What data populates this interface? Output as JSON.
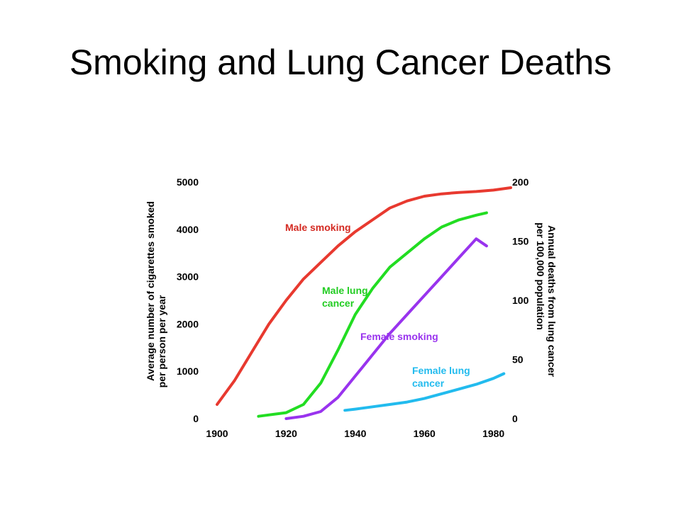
{
  "slide": {
    "title": "Smoking and Lung Cancer Deaths"
  },
  "chart_data": {
    "type": "line",
    "title": "",
    "xlabel": "",
    "x_ticks": [
      1900,
      1920,
      1940,
      1960,
      1980
    ],
    "xlim": [
      1900,
      1985
    ],
    "y_left": {
      "label_line1": "Average number of cigarettes smoked",
      "label_line2": "per person per year",
      "ticks": [
        0,
        1000,
        2000,
        3000,
        4000,
        5000
      ],
      "ylim": [
        0,
        5000
      ]
    },
    "y_right": {
      "label_line1": "Annual deaths from lung cancer",
      "label_line2": "per 100,000 population",
      "ticks": [
        0,
        50,
        100,
        150,
        200
      ],
      "ylim": [
        0,
        200
      ]
    },
    "series": [
      {
        "name": "Male smoking",
        "axis": "left",
        "color": "#e8392f",
        "label_line1": "Male smoking",
        "label_line2": "",
        "points": [
          [
            1900,
            300
          ],
          [
            1905,
            800
          ],
          [
            1910,
            1400
          ],
          [
            1915,
            2000
          ],
          [
            1920,
            2500
          ],
          [
            1925,
            2950
          ],
          [
            1930,
            3300
          ],
          [
            1935,
            3650
          ],
          [
            1940,
            3950
          ],
          [
            1945,
            4200
          ],
          [
            1950,
            4450
          ],
          [
            1955,
            4600
          ],
          [
            1960,
            4700
          ],
          [
            1965,
            4750
          ],
          [
            1970,
            4780
          ],
          [
            1975,
            4800
          ],
          [
            1980,
            4830
          ],
          [
            1985,
            4880
          ]
        ]
      },
      {
        "name": "Male lung cancer",
        "axis": "right",
        "color": "#22dd22",
        "label_line1": "Male lung",
        "label_line2": "cancer",
        "points": [
          [
            1912,
            2
          ],
          [
            1920,
            5
          ],
          [
            1925,
            12
          ],
          [
            1930,
            30
          ],
          [
            1935,
            58
          ],
          [
            1940,
            88
          ],
          [
            1945,
            110
          ],
          [
            1950,
            128
          ],
          [
            1955,
            140
          ],
          [
            1960,
            152
          ],
          [
            1965,
            162
          ],
          [
            1970,
            168
          ],
          [
            1975,
            172
          ],
          [
            1978,
            174
          ]
        ]
      },
      {
        "name": "Female smoking",
        "axis": "left",
        "color": "#9933ee",
        "label_line1": "Female smoking",
        "label_line2": "",
        "points": [
          [
            1920,
            0
          ],
          [
            1925,
            50
          ],
          [
            1930,
            150
          ],
          [
            1935,
            450
          ],
          [
            1940,
            900
          ],
          [
            1945,
            1350
          ],
          [
            1950,
            1800
          ],
          [
            1955,
            2200
          ],
          [
            1960,
            2600
          ],
          [
            1965,
            3000
          ],
          [
            1970,
            3400
          ],
          [
            1975,
            3800
          ],
          [
            1978,
            3650
          ]
        ]
      },
      {
        "name": "Female lung cancer",
        "axis": "right",
        "color": "#22bbee",
        "label_line1": "Female lung",
        "label_line2": "cancer",
        "points": [
          [
            1937,
            7
          ],
          [
            1940,
            8
          ],
          [
            1945,
            10
          ],
          [
            1950,
            12
          ],
          [
            1955,
            14
          ],
          [
            1960,
            17
          ],
          [
            1965,
            21
          ],
          [
            1970,
            25
          ],
          [
            1975,
            29
          ],
          [
            1980,
            34
          ],
          [
            1983,
            38
          ]
        ]
      }
    ],
    "grid": false,
    "legend": "inline labels"
  }
}
